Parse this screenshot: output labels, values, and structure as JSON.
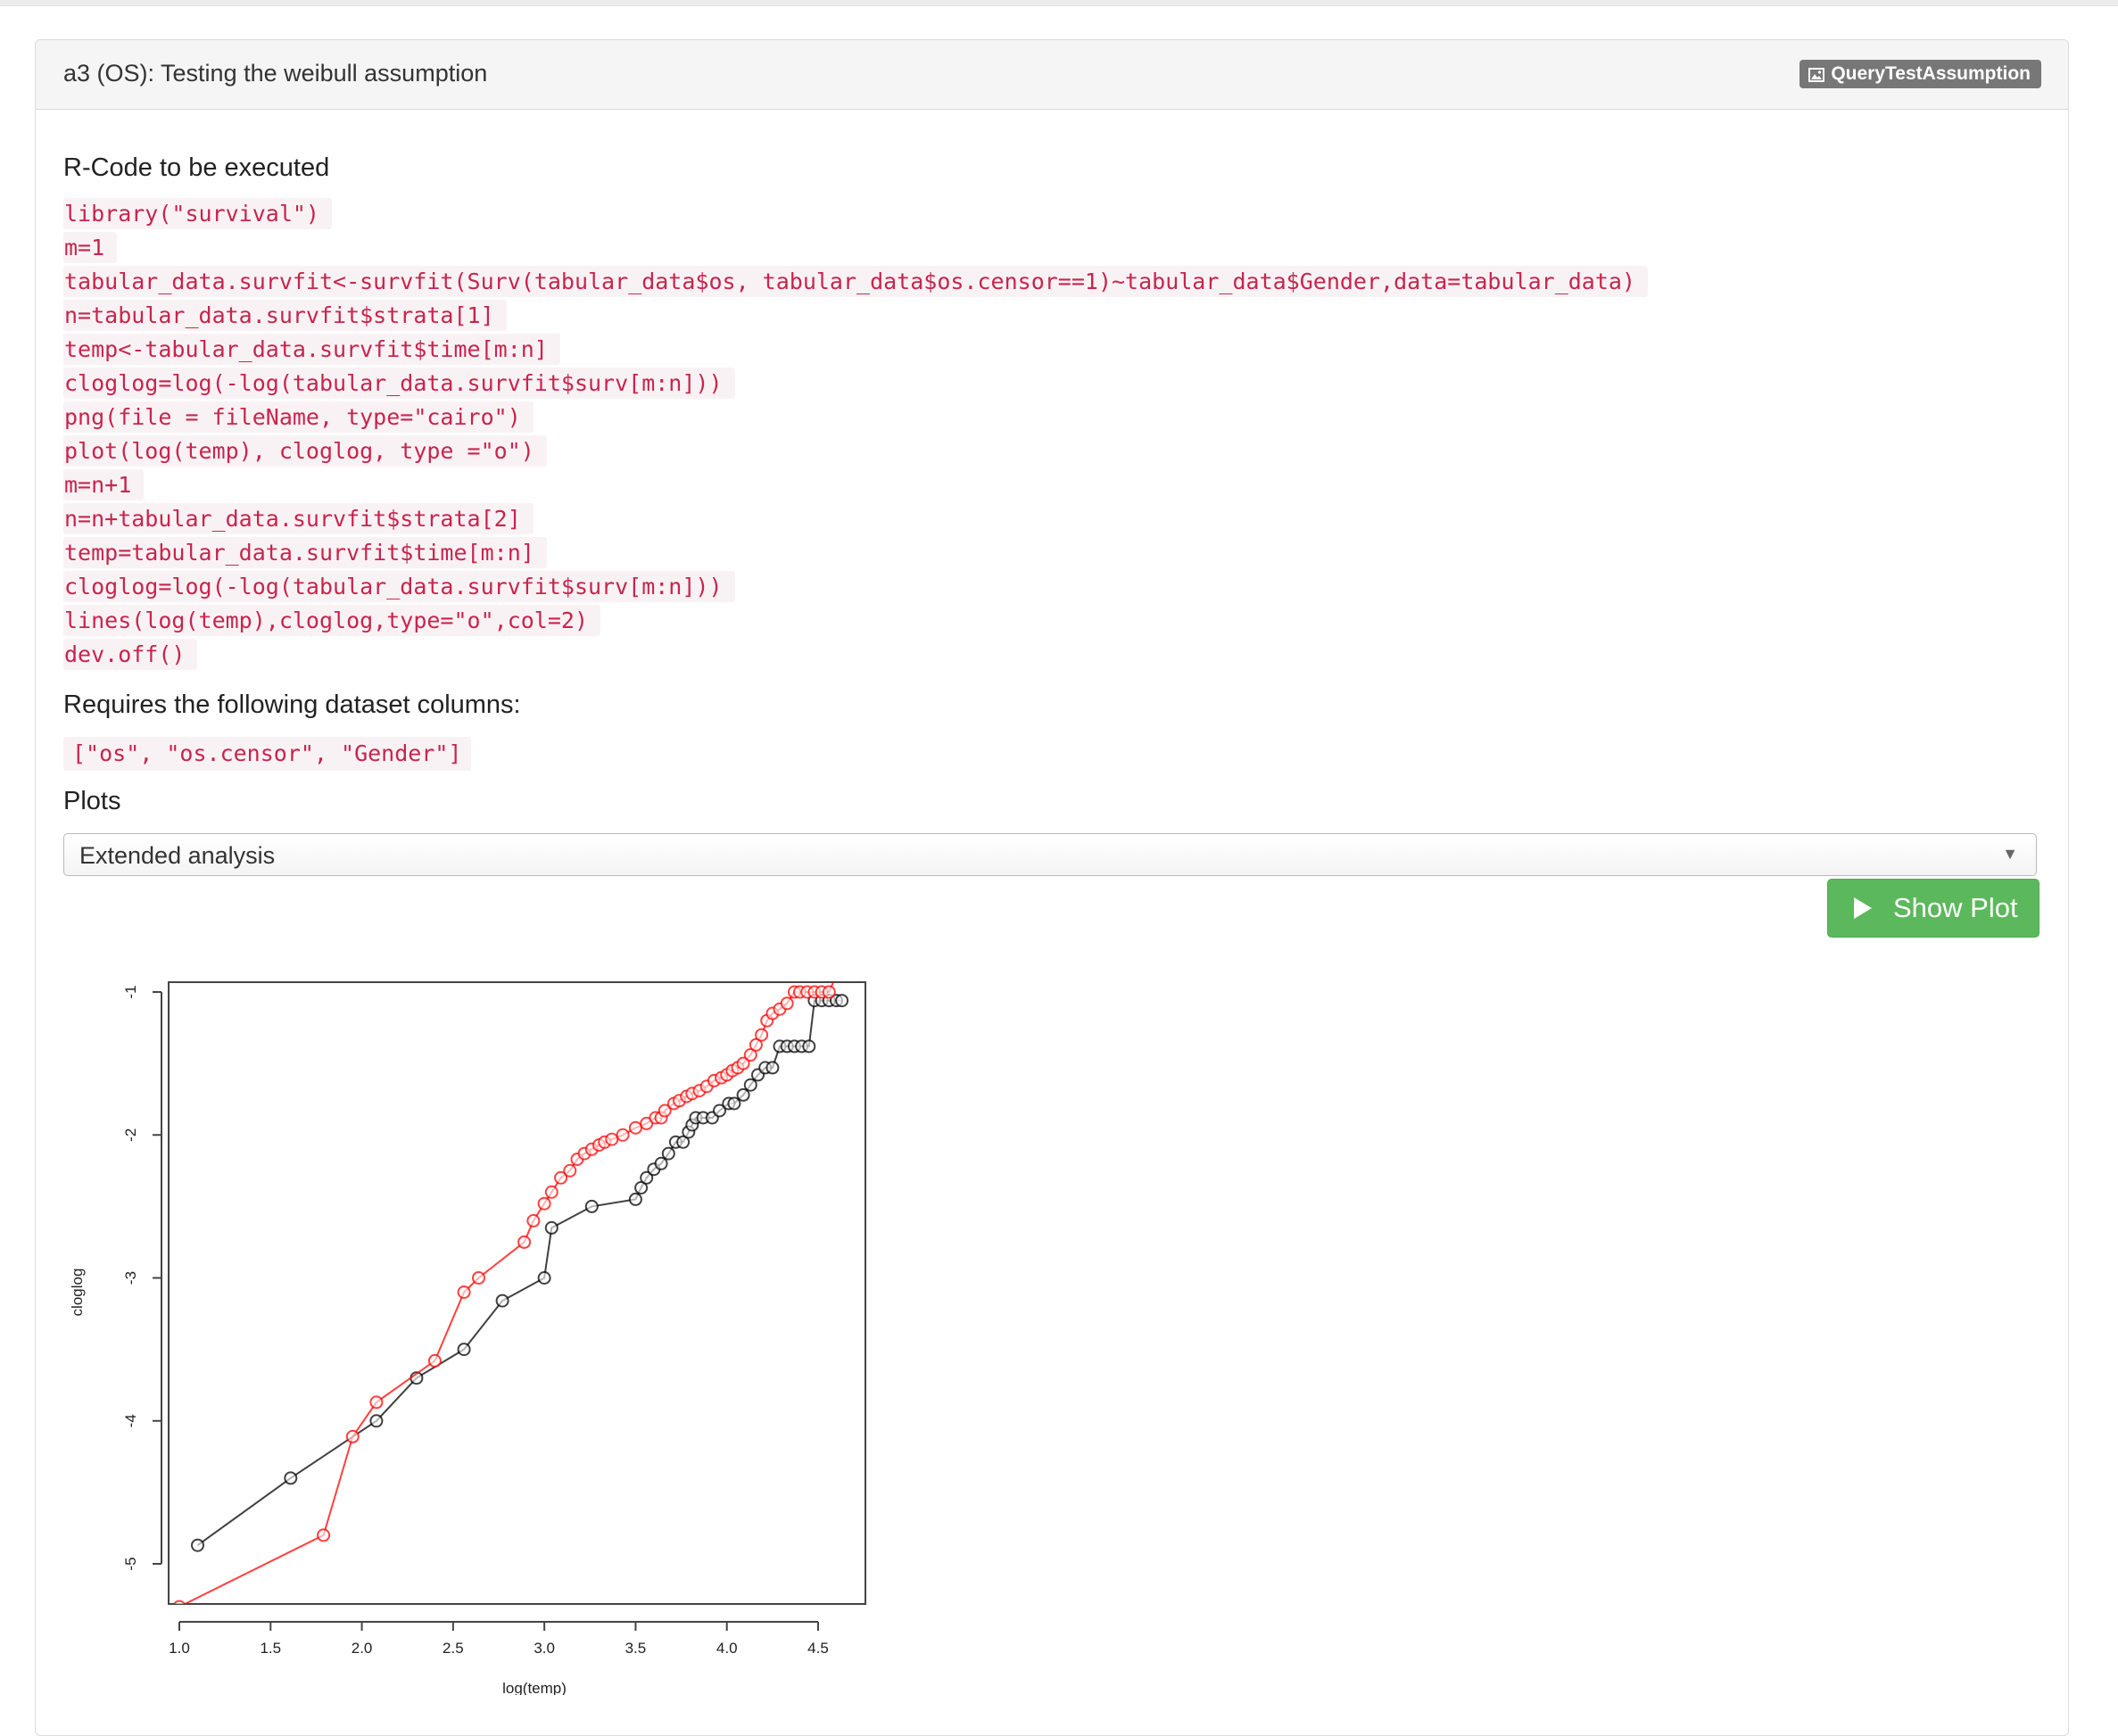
{
  "panel": {
    "title": "a3 (OS): Testing the weibull assumption",
    "badge_label": "QueryTestAssumption",
    "badge_icon": "picture-icon"
  },
  "rcode": {
    "heading": "R-Code to be executed",
    "lines": [
      "library(\"survival\")",
      "m=1",
      "tabular_data.survfit<-survfit(Surv(tabular_data$os, tabular_data$os.censor==1)~tabular_data$Gender,data=tabular_data)",
      "n=tabular_data.survfit$strata[1]",
      "temp<-tabular_data.survfit$time[m:n]",
      "cloglog=log(-log(tabular_data.survfit$surv[m:n]))",
      "png(file = fileName, type=\"cairo\")",
      "plot(log(temp), cloglog, type =\"o\")",
      "m=n+1",
      "n=n+tabular_data.survfit$strata[2]",
      "temp=tabular_data.survfit$time[m:n]",
      "cloglog=log(-log(tabular_data.survfit$surv[m:n]))",
      "lines(log(temp),cloglog,type=\"o\",col=2)",
      "dev.off()"
    ]
  },
  "columns": {
    "heading": "Requires the following dataset columns:",
    "value": "[\"os\", \"os.censor\", \"Gender\"]"
  },
  "plots": {
    "heading": "Plots",
    "selected": "Extended analysis",
    "caret_icon": "triangle-down-icon",
    "show_button_label": "Show Plot",
    "show_button_icon": "play-icon",
    "button_color": "#5cb85c"
  },
  "chart_data": {
    "type": "line",
    "xlabel": "log(temp)",
    "ylabel": "cloglog",
    "xlim": [
      1.0,
      4.7
    ],
    "ylim": [
      -5.2,
      -0.9
    ],
    "x_ticks": [
      1.0,
      1.5,
      2.0,
      2.5,
      3.0,
      3.5,
      4.0,
      4.5
    ],
    "x_tick_labels": [
      "1.0",
      "1.5",
      "2.0",
      "2.5",
      "3.0",
      "3.5",
      "4.0",
      "4.5"
    ],
    "y_ticks": [
      -5,
      -4,
      -3,
      -2,
      -1
    ],
    "y_tick_labels": [
      "-5",
      "-4",
      "-3",
      "-2",
      "-1"
    ],
    "series": [
      {
        "color": "#000000",
        "points": [
          [
            1.1,
            -4.87
          ],
          [
            1.61,
            -4.4
          ],
          [
            2.08,
            -4.0
          ],
          [
            2.3,
            -3.7
          ],
          [
            2.56,
            -3.5
          ],
          [
            2.77,
            -3.16
          ],
          [
            3.0,
            -3.0
          ],
          [
            3.04,
            -2.65
          ],
          [
            3.26,
            -2.5
          ],
          [
            3.5,
            -2.45
          ],
          [
            3.53,
            -2.37
          ],
          [
            3.56,
            -2.3
          ],
          [
            3.6,
            -2.24
          ],
          [
            3.64,
            -2.2
          ],
          [
            3.68,
            -2.13
          ],
          [
            3.72,
            -2.05
          ],
          [
            3.76,
            -2.05
          ],
          [
            3.79,
            -1.98
          ],
          [
            3.81,
            -1.93
          ],
          [
            3.83,
            -1.88
          ],
          [
            3.87,
            -1.88
          ],
          [
            3.92,
            -1.88
          ],
          [
            3.96,
            -1.83
          ],
          [
            4.01,
            -1.78
          ],
          [
            4.04,
            -1.78
          ],
          [
            4.09,
            -1.72
          ],
          [
            4.13,
            -1.65
          ],
          [
            4.17,
            -1.58
          ],
          [
            4.21,
            -1.53
          ],
          [
            4.25,
            -1.53
          ],
          [
            4.29,
            -1.38
          ],
          [
            4.33,
            -1.38
          ],
          [
            4.37,
            -1.38
          ],
          [
            4.41,
            -1.38
          ],
          [
            4.45,
            -1.38
          ],
          [
            4.48,
            -1.06
          ],
          [
            4.52,
            -1.06
          ],
          [
            4.56,
            -1.06
          ],
          [
            4.6,
            -1.06
          ],
          [
            4.63,
            -1.06
          ]
        ]
      },
      {
        "color": "#ff0000",
        "points": [
          [
            1.0,
            -5.3
          ],
          [
            1.79,
            -4.8
          ],
          [
            1.95,
            -4.11
          ],
          [
            2.08,
            -3.87
          ],
          [
            2.4,
            -3.58
          ],
          [
            2.56,
            -3.1
          ],
          [
            2.64,
            -3.0
          ],
          [
            2.89,
            -2.75
          ],
          [
            2.94,
            -2.6
          ],
          [
            3.0,
            -2.48
          ],
          [
            3.04,
            -2.4
          ],
          [
            3.09,
            -2.3
          ],
          [
            3.14,
            -2.25
          ],
          [
            3.18,
            -2.17
          ],
          [
            3.22,
            -2.13
          ],
          [
            3.26,
            -2.1
          ],
          [
            3.3,
            -2.07
          ],
          [
            3.33,
            -2.05
          ],
          [
            3.37,
            -2.03
          ],
          [
            3.43,
            -2.0
          ],
          [
            3.5,
            -1.95
          ],
          [
            3.56,
            -1.92
          ],
          [
            3.61,
            -1.88
          ],
          [
            3.64,
            -1.88
          ],
          [
            3.66,
            -1.83
          ],
          [
            3.71,
            -1.78
          ],
          [
            3.74,
            -1.76
          ],
          [
            3.78,
            -1.73
          ],
          [
            3.81,
            -1.71
          ],
          [
            3.85,
            -1.69
          ],
          [
            3.89,
            -1.66
          ],
          [
            3.93,
            -1.62
          ],
          [
            3.97,
            -1.6
          ],
          [
            4.0,
            -1.58
          ],
          [
            4.03,
            -1.55
          ],
          [
            4.06,
            -1.53
          ],
          [
            4.09,
            -1.5
          ],
          [
            4.13,
            -1.44
          ],
          [
            4.16,
            -1.37
          ],
          [
            4.19,
            -1.3
          ],
          [
            4.22,
            -1.2
          ],
          [
            4.25,
            -1.15
          ],
          [
            4.29,
            -1.12
          ],
          [
            4.33,
            -1.08
          ],
          [
            4.37,
            -1.0
          ],
          [
            4.4,
            -1.0
          ],
          [
            4.44,
            -1.0
          ],
          [
            4.48,
            -1.0
          ],
          [
            4.52,
            -1.0
          ],
          [
            4.56,
            -1.0
          ],
          [
            4.6,
            -0.88
          ]
        ]
      }
    ]
  }
}
